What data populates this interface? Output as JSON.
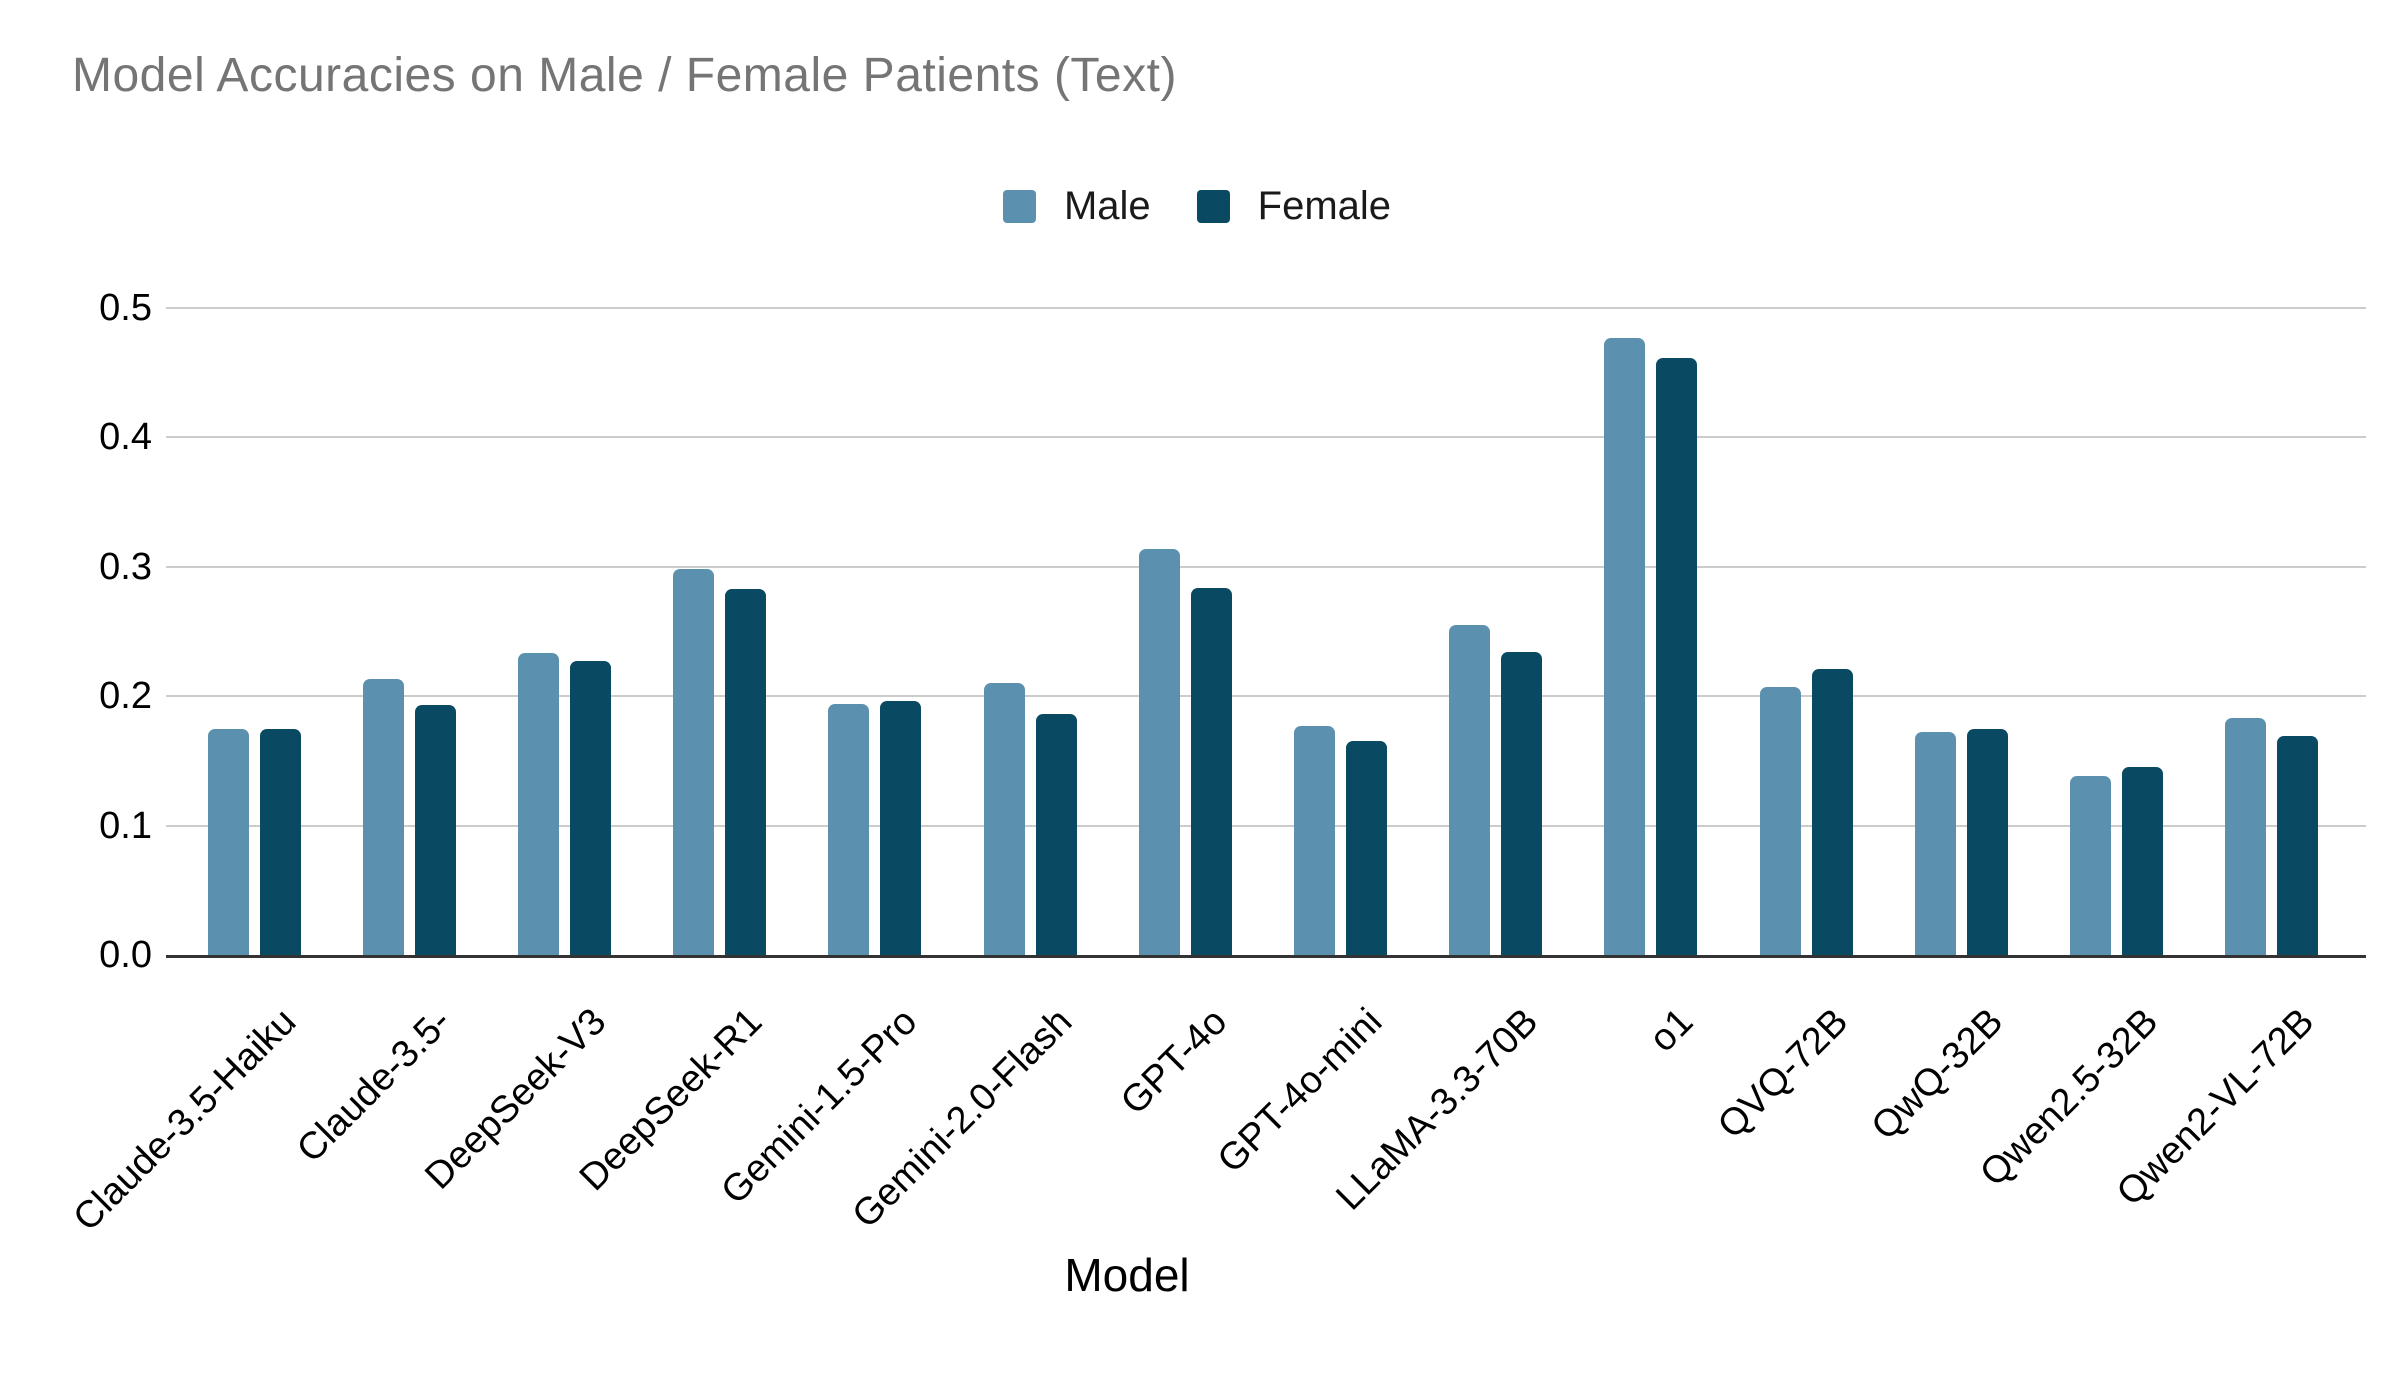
{
  "chart_data": {
    "type": "bar",
    "title": "Model Accuracies on Male / Female Patients (Text)",
    "xlabel": "Model",
    "ylabel": "",
    "ylim": [
      0,
      0.5
    ],
    "yticks": [
      0.0,
      0.1,
      0.2,
      0.3,
      0.4,
      0.5
    ],
    "grid": true,
    "legend_position": "top-center",
    "categories": [
      "Claude-3.5-Haiku",
      "Claude-3.5-",
      "DeepSeek-V3",
      "DeepSeek-R1",
      "Gemini-1.5-Pro",
      "Gemini-2.0-Flash",
      "GPT-4o",
      "GPT-4o-mini",
      "LLaMA-3.3-70B",
      "o1",
      "QVQ-72B",
      "QwQ-32B",
      "Qwen2.5-32B",
      "Qwen2-VL-72B"
    ],
    "series": [
      {
        "name": "Male",
        "color": "#5b91af",
        "values": [
          0.175,
          0.213,
          0.233,
          0.298,
          0.194,
          0.21,
          0.314,
          0.177,
          0.255,
          0.477,
          0.207,
          0.172,
          0.138,
          0.183
        ]
      },
      {
        "name": "Female",
        "color": "#0a4962",
        "values": [
          0.175,
          0.193,
          0.227,
          0.283,
          0.196,
          0.186,
          0.284,
          0.165,
          0.234,
          0.461,
          0.221,
          0.175,
          0.145,
          0.169
        ]
      }
    ],
    "colors": {
      "gridline": "#cccccc",
      "axis_line": "#333333",
      "title_text": "#757575"
    }
  }
}
